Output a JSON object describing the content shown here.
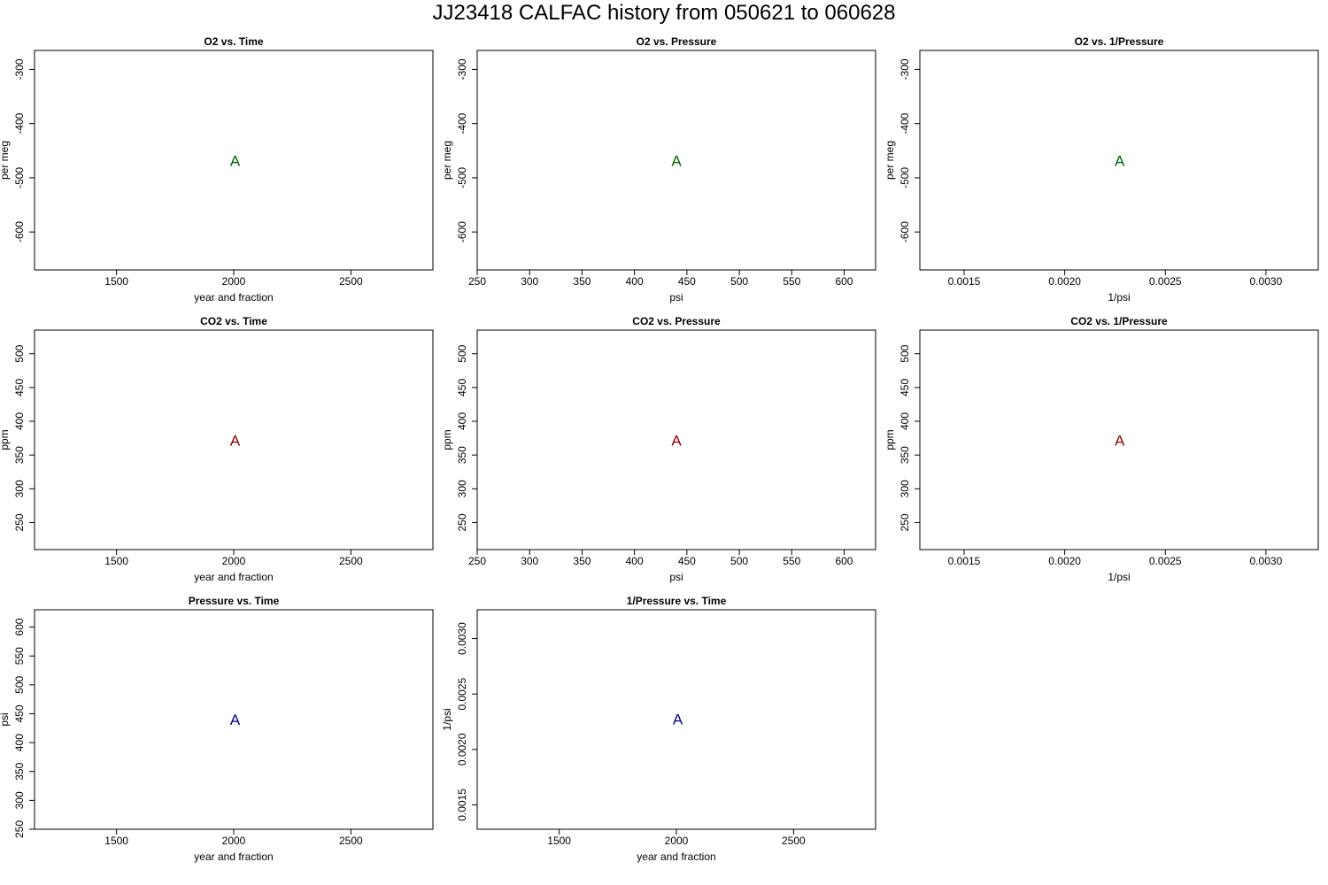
{
  "figure": {
    "title": "JJ23418   CALFAC history from  050621  to  060628"
  },
  "chart_data": [
    {
      "name": "o2-vs-time",
      "type": "scatter",
      "title": "O2 vs. Time",
      "xlabel": "year and fraction",
      "ylabel": "per meg",
      "xlim": [
        1150,
        2850
      ],
      "ylim": [
        -670,
        -265
      ],
      "xticks": [
        1500,
        2000,
        2500
      ],
      "yticks": [
        -300,
        -400,
        -500,
        -600
      ],
      "xtick_labels": [
        "1500",
        "2000",
        "2500"
      ],
      "ytick_labels": [
        "-300",
        "-400",
        "-500",
        "-600"
      ],
      "points": [
        {
          "x": 2006,
          "y": -468,
          "label": "A",
          "color": "#006400"
        }
      ]
    },
    {
      "name": "o2-vs-pressure",
      "type": "scatter",
      "title": "O2 vs. Pressure",
      "xlabel": "psi",
      "ylabel": "per meg",
      "xlim": [
        250,
        630
      ],
      "ylim": [
        -670,
        -265
      ],
      "xticks": [
        250,
        300,
        350,
        400,
        450,
        500,
        550,
        600
      ],
      "yticks": [
        -300,
        -400,
        -500,
        -600
      ],
      "xtick_labels": [
        "250",
        "300",
        "350",
        "400",
        "450",
        "500",
        "550",
        "600"
      ],
      "ytick_labels": [
        "-300",
        "-400",
        "-500",
        "-600"
      ],
      "points": [
        {
          "x": 440,
          "y": -468,
          "label": "A",
          "color": "#006400"
        }
      ]
    },
    {
      "name": "o2-vs-inverse-pressure",
      "type": "scatter",
      "title": "O2 vs. 1/Pressure",
      "xlabel": "1/psi",
      "ylabel": "per meg",
      "xlim": [
        0.00128,
        0.00326
      ],
      "ylim": [
        -670,
        -265
      ],
      "xticks": [
        0.0015,
        0.002,
        0.0025,
        0.003
      ],
      "yticks": [
        -300,
        -400,
        -500,
        -600
      ],
      "xtick_labels": [
        "0.0015",
        "0.0020",
        "0.0025",
        "0.0030"
      ],
      "ytick_labels": [
        "-300",
        "-400",
        "-500",
        "-600"
      ],
      "points": [
        {
          "x": 0.002273,
          "y": -468,
          "label": "A",
          "color": "#006400"
        }
      ]
    },
    {
      "name": "co2-vs-time",
      "type": "scatter",
      "title": "CO2 vs. Time",
      "xlabel": "year and fraction",
      "ylabel": "ppm",
      "xlim": [
        1150,
        2850
      ],
      "ylim": [
        210,
        535
      ],
      "xticks": [
        1500,
        2000,
        2500
      ],
      "yticks": [
        250,
        300,
        350,
        400,
        450,
        500
      ],
      "xtick_labels": [
        "1500",
        "2000",
        "2500"
      ],
      "ytick_labels": [
        "250",
        "300",
        "350",
        "400",
        "450",
        "500"
      ],
      "points": [
        {
          "x": 2006,
          "y": 372,
          "label": "A",
          "color": "#8b0000"
        }
      ]
    },
    {
      "name": "co2-vs-pressure",
      "type": "scatter",
      "title": "CO2 vs. Pressure",
      "xlabel": "psi",
      "ylabel": "ppm",
      "xlim": [
        250,
        630
      ],
      "ylim": [
        210,
        535
      ],
      "xticks": [
        250,
        300,
        350,
        400,
        450,
        500,
        550,
        600
      ],
      "yticks": [
        250,
        300,
        350,
        400,
        450,
        500
      ],
      "xtick_labels": [
        "250",
        "300",
        "350",
        "400",
        "450",
        "500",
        "550",
        "600"
      ],
      "ytick_labels": [
        "250",
        "300",
        "350",
        "400",
        "450",
        "500"
      ],
      "points": [
        {
          "x": 440,
          "y": 372,
          "label": "A",
          "color": "#8b0000"
        }
      ]
    },
    {
      "name": "co2-vs-inverse-pressure",
      "type": "scatter",
      "title": "CO2 vs. 1/Pressure",
      "xlabel": "1/psi",
      "ylabel": "ppm",
      "xlim": [
        0.00128,
        0.00326
      ],
      "ylim": [
        210,
        535
      ],
      "xticks": [
        0.0015,
        0.002,
        0.0025,
        0.003
      ],
      "yticks": [
        250,
        300,
        350,
        400,
        450,
        500
      ],
      "xtick_labels": [
        "0.0015",
        "0.0020",
        "0.0025",
        "0.0030"
      ],
      "ytick_labels": [
        "250",
        "300",
        "350",
        "400",
        "450",
        "500"
      ],
      "points": [
        {
          "x": 0.002273,
          "y": 372,
          "label": "A",
          "color": "#8b0000"
        }
      ]
    },
    {
      "name": "pressure-vs-time",
      "type": "scatter",
      "title": "Pressure vs. Time",
      "xlabel": "year and fraction",
      "ylabel": "psi",
      "xlim": [
        1150,
        2850
      ],
      "ylim": [
        250,
        630
      ],
      "xticks": [
        1500,
        2000,
        2500
      ],
      "yticks": [
        250,
        300,
        350,
        400,
        450,
        500,
        550,
        600
      ],
      "xtick_labels": [
        "1500",
        "2000",
        "2500"
      ],
      "ytick_labels": [
        "250",
        "300",
        "350",
        "400",
        "450",
        "500",
        "550",
        "600"
      ],
      "points": [
        {
          "x": 2006,
          "y": 440,
          "label": "A",
          "color": "#00008b"
        }
      ]
    },
    {
      "name": "inverse-pressure-vs-time",
      "type": "scatter",
      "title": "1/Pressure vs. Time",
      "xlabel": "year and fraction",
      "ylabel": "1/psi",
      "xlim": [
        1150,
        2850
      ],
      "ylim": [
        0.00128,
        0.00326
      ],
      "xticks": [
        1500,
        2000,
        2500
      ],
      "yticks": [
        0.0015,
        0.002,
        0.0025,
        0.003
      ],
      "xtick_labels": [
        "1500",
        "2000",
        "2500"
      ],
      "ytick_labels": [
        "0.0015",
        "0.0020",
        "0.0025",
        "0.0030"
      ],
      "points": [
        {
          "x": 2006,
          "y": 0.002273,
          "label": "A",
          "color": "#00008b"
        }
      ]
    }
  ]
}
